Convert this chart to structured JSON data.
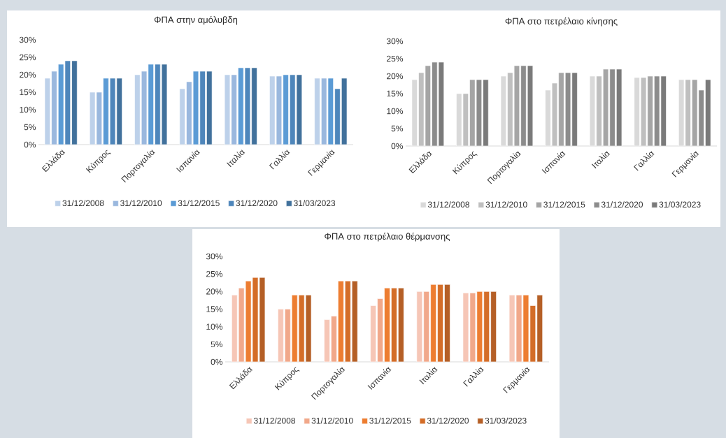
{
  "chart_data": [
    {
      "type": "bar",
      "title": "ΦΠΑ στην αμόλυβδη",
      "categories": [
        "Ελλάδα",
        "Κύπρος",
        "Πορτογαλία",
        "Ισπανία",
        "Ιταλία",
        "Γαλλία",
        "Γερμανία"
      ],
      "ylim": [
        0,
        30
      ],
      "yticks": [
        {
          "value": 0,
          "label": "0%"
        },
        {
          "value": 5,
          "label": "5%"
        },
        {
          "value": 10,
          "label": "10%"
        },
        {
          "value": 15,
          "label": "15%"
        },
        {
          "value": 20,
          "label": "20%"
        },
        {
          "value": 25,
          "label": "25%"
        },
        {
          "value": 30,
          "label": "30%"
        }
      ],
      "legend": "bottom",
      "series": [
        {
          "name": "31/12/2008",
          "color": "#bdd1ea",
          "values": [
            19,
            15,
            20,
            16,
            20,
            19.6,
            19
          ]
        },
        {
          "name": "31/12/2010",
          "color": "#9ab8de",
          "values": [
            21,
            15,
            21,
            18,
            20,
            19.6,
            19
          ]
        },
        {
          "name": "31/12/2015",
          "color": "#5b9bd5",
          "values": [
            23,
            19,
            23,
            21,
            22,
            20,
            19
          ]
        },
        {
          "name": "31/12/2020",
          "color": "#4e86bb",
          "values": [
            24,
            19,
            23,
            21,
            22,
            20,
            16
          ]
        },
        {
          "name": "31/03/2023",
          "color": "#41719c",
          "values": [
            24,
            19,
            23,
            21,
            22,
            20,
            19
          ]
        }
      ]
    },
    {
      "type": "bar",
      "title": "ΦΠΑ στο πετρέλαιο κίνησης",
      "categories": [
        "Ελλάδα",
        "Κύπρος",
        "Πορτογαλία",
        "Ισπανία",
        "Ιταλία",
        "Γαλλία",
        "Γερμανία"
      ],
      "ylim": [
        0,
        30
      ],
      "yticks": [
        {
          "value": 0,
          "label": "0%"
        },
        {
          "value": 5,
          "label": "5%"
        },
        {
          "value": 10,
          "label": "10%"
        },
        {
          "value": 15,
          "label": "15%"
        },
        {
          "value": 20,
          "label": "20%"
        },
        {
          "value": 25,
          "label": "25%"
        },
        {
          "value": 30,
          "label": "30%"
        }
      ],
      "legend": "bottom",
      "series": [
        {
          "name": "31/12/2008",
          "color": "#d9d9d9",
          "values": [
            19,
            15,
            20,
            16,
            20,
            19.6,
            19
          ]
        },
        {
          "name": "31/12/2010",
          "color": "#bfbfbf",
          "values": [
            21,
            15,
            21,
            18,
            20,
            19.6,
            19
          ]
        },
        {
          "name": "31/12/2015",
          "color": "#a5a5a5",
          "values": [
            23,
            19,
            23,
            21,
            22,
            20,
            19
          ]
        },
        {
          "name": "31/12/2020",
          "color": "#8c8c8c",
          "values": [
            24,
            19,
            23,
            21,
            22,
            20,
            16
          ]
        },
        {
          "name": "31/03/2023",
          "color": "#7a7a7a",
          "values": [
            24,
            19,
            23,
            21,
            22,
            20,
            19
          ]
        }
      ]
    },
    {
      "type": "bar",
      "title": "ΦΠΑ στο πετρέλαιο θέρμανσης",
      "categories": [
        "Ελλάδα",
        "Κύπρος",
        "Πορτογαλία",
        "Ισπανία",
        "Ιταλία",
        "Γαλλία",
        "Γερμανία"
      ],
      "ylim": [
        0,
        30
      ],
      "yticks": [
        {
          "value": 0,
          "label": "0%"
        },
        {
          "value": 5,
          "label": "5%"
        },
        {
          "value": 10,
          "label": "10%"
        },
        {
          "value": 15,
          "label": "15%"
        },
        {
          "value": 20,
          "label": "20%"
        },
        {
          "value": 25,
          "label": "25%"
        },
        {
          "value": 30,
          "label": "30%"
        }
      ],
      "legend": "bottom",
      "series": [
        {
          "name": "31/12/2008",
          "color": "#f6c6b6",
          "values": [
            19,
            15,
            12,
            16,
            20,
            19.6,
            19
          ]
        },
        {
          "name": "31/12/2010",
          "color": "#f1a88a",
          "values": [
            21,
            15,
            13,
            18,
            20,
            19.6,
            19
          ]
        },
        {
          "name": "31/12/2015",
          "color": "#ed7d31",
          "values": [
            23,
            19,
            23,
            21,
            22,
            20,
            19
          ]
        },
        {
          "name": "31/12/2020",
          "color": "#d46d28",
          "values": [
            24,
            19,
            23,
            21,
            22,
            20,
            16
          ]
        },
        {
          "name": "31/03/2023",
          "color": "#b55f26",
          "values": [
            24,
            19,
            23,
            21,
            22,
            20,
            19
          ]
        }
      ]
    }
  ]
}
